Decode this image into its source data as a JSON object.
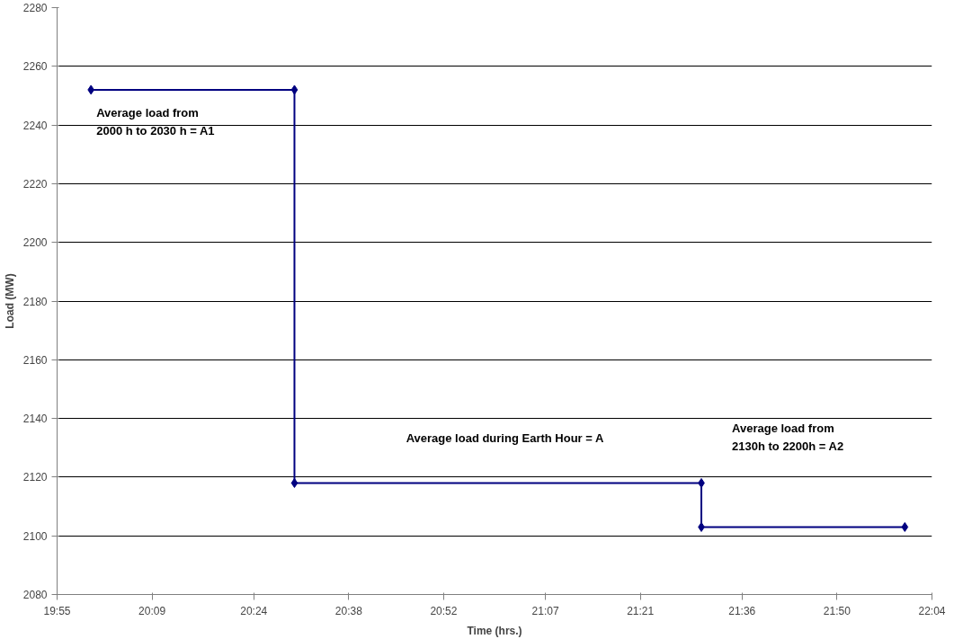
{
  "chart_data": {
    "type": "line",
    "xlabel": "Time (hrs.)",
    "ylabel": "Load (MW)",
    "x": [
      20.0,
      20.5,
      20.5,
      21.5,
      21.5,
      22.0
    ],
    "series": [
      {
        "color": "#000080",
        "values": [
          2252,
          2252,
          2118,
          2118,
          2103,
          2103
        ]
      }
    ],
    "xlim": [
      19.9167,
      22.0667
    ],
    "xticks": [
      {
        "value": 19.9167,
        "label": "19:55"
      },
      {
        "value": 20.15,
        "label": "20:09"
      },
      {
        "value": 20.4,
        "label": "20:24"
      },
      {
        "value": 20.6333,
        "label": "20:38"
      },
      {
        "value": 20.8667,
        "label": "20:52"
      },
      {
        "value": 21.1167,
        "label": "21:07"
      },
      {
        "value": 21.35,
        "label": "21:21"
      },
      {
        "value": 21.6,
        "label": "21:36"
      },
      {
        "value": 21.8333,
        "label": "21:50"
      },
      {
        "value": 22.0667,
        "label": "22:04"
      }
    ],
    "ylim": [
      2080,
      2280
    ],
    "yticks": [
      2080,
      2100,
      2120,
      2140,
      2160,
      2180,
      2200,
      2220,
      2240,
      2260,
      2280
    ],
    "grid": "y",
    "marker": "diamond",
    "line_style": "solid",
    "annotations": [
      "Average load from\n2000 h to 2030 h = A1",
      "Average load during Earth Hour = A",
      "Average load from\n2130h to 2200h = A2"
    ]
  }
}
